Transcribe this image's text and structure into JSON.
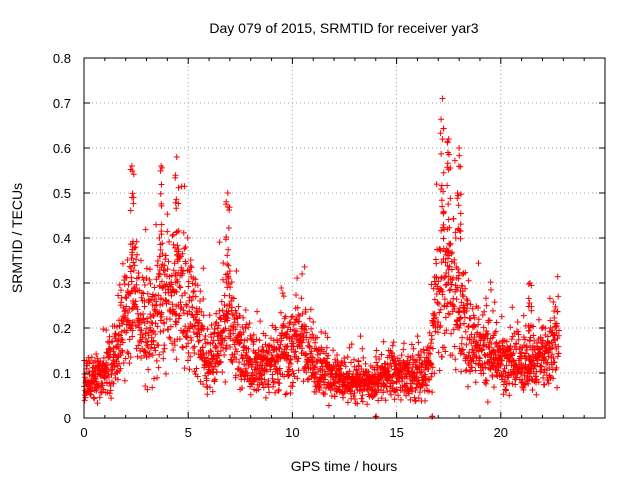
{
  "chart_data": {
    "type": "scatter",
    "title": "Day 079 of 2015, SRMTID for receiver yar3",
    "xlabel": "GPS time / hours",
    "ylabel": "SRMTID / TECUs",
    "xlim": [
      0,
      25
    ],
    "ylim": [
      0,
      0.8
    ],
    "xticks": [
      0,
      5,
      10,
      15,
      20
    ],
    "yticks": [
      0,
      0.1,
      0.2,
      0.3,
      0.4,
      0.5,
      0.6,
      0.7,
      0.8
    ],
    "xtick_labels": [
      "0",
      "5",
      "10",
      "15",
      "20"
    ],
    "ytick_labels": [
      "0",
      "0.1",
      "0.2",
      "0.3",
      "0.4",
      "0.5",
      "0.6",
      "0.7",
      "0.8"
    ],
    "grid": true,
    "marker": "+",
    "color": "#ff0000",
    "x_range_of_data": [
      0,
      22.8
    ],
    "approx_sample_step_hours": 0.0083,
    "activity_profile_hours_vs_typical_tecu": [
      [
        0.0,
        0.09
      ],
      [
        0.5,
        0.09
      ],
      [
        1.0,
        0.1
      ],
      [
        1.5,
        0.14
      ],
      [
        2.0,
        0.22
      ],
      [
        2.5,
        0.25
      ],
      [
        3.0,
        0.2
      ],
      [
        3.5,
        0.24
      ],
      [
        4.0,
        0.27
      ],
      [
        4.5,
        0.28
      ],
      [
        5.0,
        0.24
      ],
      [
        5.5,
        0.2
      ],
      [
        6.0,
        0.12
      ],
      [
        6.5,
        0.17
      ],
      [
        7.0,
        0.22
      ],
      [
        7.5,
        0.16
      ],
      [
        8.0,
        0.12
      ],
      [
        9.0,
        0.12
      ],
      [
        10.0,
        0.16
      ],
      [
        10.5,
        0.19
      ],
      [
        11.0,
        0.12
      ],
      [
        12.0,
        0.09
      ],
      [
        13.0,
        0.08
      ],
      [
        14.0,
        0.08
      ],
      [
        14.5,
        0.1
      ],
      [
        15.0,
        0.1
      ],
      [
        16.0,
        0.09
      ],
      [
        16.5,
        0.1
      ],
      [
        17.0,
        0.28
      ],
      [
        17.5,
        0.32
      ],
      [
        18.0,
        0.24
      ],
      [
        18.5,
        0.18
      ],
      [
        19.0,
        0.15
      ],
      [
        20.0,
        0.13
      ],
      [
        21.0,
        0.11
      ],
      [
        22.0,
        0.13
      ],
      [
        22.8,
        0.17
      ]
    ],
    "peaks": [
      {
        "x": 2.3,
        "y": 0.56
      },
      {
        "x": 4.45,
        "y": 0.58
      },
      {
        "x": 3.7,
        "y": 0.56
      },
      {
        "x": 6.9,
        "y": 0.5
      },
      {
        "x": 17.2,
        "y": 0.71
      },
      {
        "x": 17.5,
        "y": 0.62
      },
      {
        "x": 18.0,
        "y": 0.6
      },
      {
        "x": 21.4,
        "y": 0.3
      }
    ],
    "outliers_at_zero": [
      14.0,
      16.7
    ]
  }
}
